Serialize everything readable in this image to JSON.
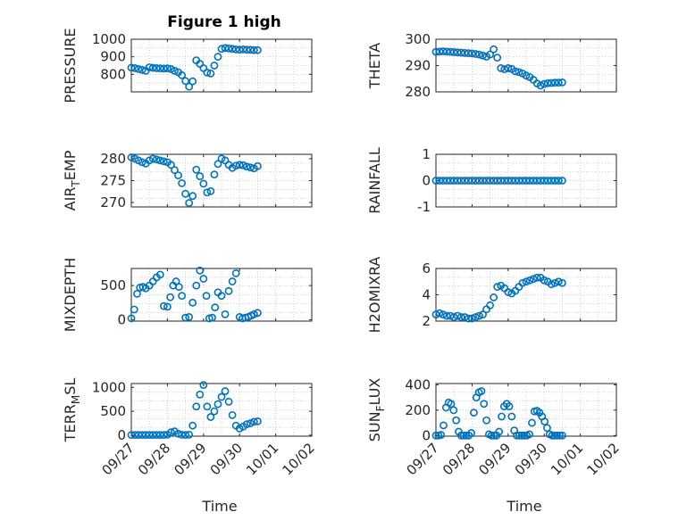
{
  "title": "Figure 1 high",
  "colors": {
    "marker": "#0072bd",
    "axis": "#262626",
    "grid": "#c8c8c8"
  },
  "chart_data": [
    {
      "id": "pressure",
      "type": "scatter",
      "ylabel_main": "PRESSURE",
      "ylabel_sub": "",
      "ylim": [
        700,
        1000
      ],
      "yticks": [
        800,
        900,
        1000
      ],
      "ytick_labels": [
        "800",
        "900",
        "1000"
      ],
      "xlabel": "",
      "x": [
        0,
        0.1,
        0.2,
        0.3,
        0.4,
        0.5,
        0.6,
        0.7,
        0.8,
        0.9,
        1.0,
        1.1,
        1.2,
        1.3,
        1.4,
        1.5,
        1.6,
        1.7,
        1.8,
        1.9,
        2.0,
        2.1,
        2.2,
        2.3,
        2.4,
        2.5,
        2.6,
        2.7,
        2.8,
        2.9,
        3.0,
        3.1,
        3.2,
        3.3,
        3.4,
        3.5
      ],
      "values": [
        838,
        835,
        830,
        825,
        820,
        840,
        837,
        835,
        834,
        833,
        834,
        830,
        820,
        812,
        795,
        762,
        730,
        760,
        880,
        860,
        835,
        810,
        805,
        850,
        900,
        945,
        950,
        948,
        945,
        942,
        940,
        942,
        940,
        940,
        938,
        938
      ]
    },
    {
      "id": "theta",
      "type": "scatter",
      "ylabel_main": "THETA",
      "ylabel_sub": "",
      "ylim": [
        280,
        300
      ],
      "yticks": [
        280,
        290,
        300
      ],
      "ytick_labels": [
        "280",
        "290",
        "300"
      ],
      "xlabel": "",
      "x": [
        0,
        0.1,
        0.2,
        0.3,
        0.4,
        0.5,
        0.6,
        0.7,
        0.8,
        0.9,
        1.0,
        1.1,
        1.2,
        1.3,
        1.4,
        1.5,
        1.6,
        1.7,
        1.8,
        1.9,
        2.0,
        2.1,
        2.2,
        2.3,
        2.4,
        2.5,
        2.6,
        2.7,
        2.8,
        2.9,
        3.0,
        3.1,
        3.2,
        3.3,
        3.4,
        3.5
      ],
      "values": [
        295.2,
        295.3,
        295.4,
        295.3,
        295.2,
        295.1,
        295.0,
        294.9,
        294.8,
        294.7,
        294.6,
        294.4,
        294.2,
        293.8,
        293.4,
        294.2,
        296.2,
        293.0,
        289.0,
        288.6,
        289.0,
        288.7,
        287.8,
        287.5,
        287.0,
        286.2,
        285.6,
        284.6,
        283.2,
        282.4,
        283.0,
        283.3,
        283.4,
        283.5,
        283.5,
        283.6
      ]
    },
    {
      "id": "air_temp",
      "type": "scatter",
      "ylabel_main": "AIR",
      "ylabel_sub": "T",
      "ylabel_rest": "EMP",
      "ylim": [
        269,
        281
      ],
      "yticks": [
        270,
        275,
        280
      ],
      "ytick_labels": [
        "270",
        "275",
        "280"
      ],
      "xlabel": "",
      "x": [
        0,
        0.1,
        0.2,
        0.3,
        0.4,
        0.5,
        0.6,
        0.7,
        0.8,
        0.9,
        1.0,
        1.1,
        1.2,
        1.3,
        1.4,
        1.5,
        1.6,
        1.7,
        1.8,
        1.9,
        2.0,
        2.1,
        2.2,
        2.3,
        2.4,
        2.5,
        2.6,
        2.7,
        2.8,
        2.9,
        3.0,
        3.1,
        3.2,
        3.3,
        3.4,
        3.5
      ],
      "values": [
        280.3,
        280.0,
        279.6,
        279.2,
        278.9,
        279.6,
        280.0,
        279.8,
        279.6,
        279.4,
        279.2,
        278.6,
        277.4,
        276.2,
        274.4,
        272.0,
        269.9,
        271.5,
        277.5,
        276.0,
        274.3,
        272.3,
        272.6,
        276.4,
        278.8,
        280.0,
        279.6,
        278.6,
        277.9,
        278.4,
        278.6,
        278.5,
        278.2,
        278.0,
        277.8,
        278.3
      ]
    },
    {
      "id": "rainfall",
      "type": "scatter",
      "ylabel_main": "RAINFALL",
      "ylabel_sub": "",
      "ylim": [
        -1,
        1
      ],
      "yticks": [
        -1,
        0,
        1
      ],
      "ytick_labels": [
        "-1",
        "0",
        "1"
      ],
      "xlabel": "",
      "x": [
        0,
        0.1,
        0.2,
        0.3,
        0.4,
        0.5,
        0.6,
        0.7,
        0.8,
        0.9,
        1.0,
        1.1,
        1.2,
        1.3,
        1.4,
        1.5,
        1.6,
        1.7,
        1.8,
        1.9,
        2.0,
        2.1,
        2.2,
        2.3,
        2.4,
        2.5,
        2.6,
        2.7,
        2.8,
        2.9,
        3.0,
        3.1,
        3.2,
        3.3,
        3.4,
        3.5
      ],
      "values": [
        0,
        0,
        0,
        0,
        0,
        0,
        0,
        0,
        0,
        0,
        0,
        0,
        0,
        0,
        0,
        0,
        0,
        0,
        0,
        0,
        0,
        0,
        0,
        0,
        0,
        0,
        0,
        0,
        0,
        0,
        0,
        0,
        0,
        0,
        0,
        0
      ]
    },
    {
      "id": "mixdepth",
      "type": "scatter",
      "ylabel_main": "MIXDEPTH",
      "ylabel_sub": "",
      "ylim": [
        -20,
        750
      ],
      "yticks": [
        0,
        500
      ],
      "ytick_labels": [
        "0",
        "500"
      ],
      "xlabel": "",
      "x": [
        0,
        0.08,
        0.16,
        0.24,
        0.32,
        0.4,
        0.5,
        0.6,
        0.7,
        0.8,
        0.9,
        1.0,
        1.08,
        1.16,
        1.24,
        1.32,
        1.4,
        1.5,
        1.6,
        1.7,
        1.8,
        1.9,
        2.0,
        2.08,
        2.16,
        2.24,
        2.32,
        2.4,
        2.5,
        2.6,
        2.7,
        2.8,
        2.9,
        3.0,
        3.08,
        3.16,
        3.24,
        3.32,
        3.4,
        3.5
      ],
      "values": [
        20,
        150,
        380,
        470,
        480,
        460,
        500,
        560,
        620,
        660,
        200,
        190,
        330,
        500,
        560,
        480,
        350,
        30,
        40,
        250,
        500,
        720,
        600,
        350,
        20,
        30,
        180,
        400,
        350,
        80,
        420,
        560,
        680,
        40,
        20,
        30,
        40,
        60,
        80,
        100
      ]
    },
    {
      "id": "h2omixra",
      "type": "scatter",
      "ylabel_main": "H2OMIXRA",
      "ylabel_sub": "",
      "ylim": [
        2,
        6
      ],
      "yticks": [
        2,
        4,
        6
      ],
      "ytick_labels": [
        "2",
        "4",
        "6"
      ],
      "xlabel": "",
      "x": [
        0,
        0.1,
        0.2,
        0.3,
        0.4,
        0.5,
        0.6,
        0.7,
        0.8,
        0.9,
        1.0,
        1.1,
        1.2,
        1.3,
        1.4,
        1.5,
        1.6,
        1.7,
        1.8,
        1.9,
        2.0,
        2.1,
        2.2,
        2.3,
        2.4,
        2.5,
        2.6,
        2.7,
        2.8,
        2.9,
        3.0,
        3.1,
        3.2,
        3.3,
        3.4,
        3.5
      ],
      "values": [
        2.5,
        2.6,
        2.5,
        2.4,
        2.4,
        2.3,
        2.4,
        2.3,
        2.3,
        2.2,
        2.2,
        2.3,
        2.4,
        2.5,
        2.9,
        3.2,
        3.8,
        4.6,
        4.7,
        4.5,
        4.2,
        4.1,
        4.3,
        4.6,
        4.9,
        5.0,
        5.1,
        5.2,
        5.3,
        5.3,
        5.1,
        5.0,
        4.8,
        4.9,
        5.0,
        4.9
      ]
    },
    {
      "id": "terr_msl",
      "type": "scatter",
      "ylabel_main": "TERR",
      "ylabel_sub": "M",
      "ylabel_rest": "SL",
      "ylim": [
        -20,
        1080
      ],
      "yticks": [
        0,
        500,
        1000
      ],
      "ytick_labels": [
        "0",
        "500",
        "1000"
      ],
      "xlabel": "Time",
      "x": [
        0,
        0.1,
        0.2,
        0.3,
        0.4,
        0.5,
        0.6,
        0.7,
        0.8,
        0.9,
        1.0,
        1.1,
        1.2,
        1.3,
        1.4,
        1.5,
        1.6,
        1.7,
        1.8,
        1.9,
        2.0,
        2.1,
        2.2,
        2.3,
        2.4,
        2.5,
        2.6,
        2.7,
        2.8,
        2.9,
        3.0,
        3.1,
        3.2,
        3.3,
        3.4,
        3.5
      ],
      "values": [
        5,
        5,
        5,
        5,
        5,
        5,
        5,
        5,
        5,
        5,
        10,
        60,
        80,
        30,
        10,
        5,
        10,
        200,
        600,
        850,
        1050,
        600,
        380,
        500,
        650,
        800,
        920,
        700,
        420,
        200,
        140,
        180,
        230,
        250,
        280,
        290
      ]
    },
    {
      "id": "sun_flux",
      "type": "scatter",
      "ylabel_main": "SUN",
      "ylabel_sub": "F",
      "ylabel_rest": "LUX",
      "ylim": [
        -5,
        410
      ],
      "yticks": [
        0,
        200,
        400
      ],
      "ytick_labels": [
        "0",
        "200",
        "400"
      ],
      "xlabel": "Time",
      "x": [
        0,
        0.07,
        0.14,
        0.21,
        0.28,
        0.35,
        0.42,
        0.49,
        0.56,
        0.63,
        0.7,
        0.77,
        0.84,
        0.91,
        0.98,
        1.05,
        1.12,
        1.19,
        1.26,
        1.33,
        1.4,
        1.47,
        1.54,
        1.61,
        1.68,
        1.75,
        1.82,
        1.89,
        1.96,
        2.03,
        2.1,
        2.17,
        2.24,
        2.31,
        2.38,
        2.45,
        2.52,
        2.59,
        2.66,
        2.73,
        2.8,
        2.87,
        2.94,
        3.01,
        3.08,
        3.15,
        3.22,
        3.29,
        3.36,
        3.43,
        3.5
      ],
      "values": [
        0,
        0,
        5,
        80,
        220,
        260,
        250,
        200,
        120,
        30,
        0,
        0,
        0,
        0,
        20,
        180,
        300,
        340,
        350,
        250,
        120,
        10,
        0,
        0,
        0,
        30,
        150,
        230,
        250,
        230,
        150,
        40,
        0,
        0,
        0,
        0,
        0,
        10,
        100,
        190,
        195,
        180,
        150,
        110,
        60,
        10,
        0,
        0,
        0,
        0,
        0
      ]
    }
  ],
  "xaxis": {
    "range": [
      0,
      5
    ],
    "ticks": [
      0,
      1,
      2,
      3,
      4,
      5
    ],
    "tick_labels": [
      "09/27",
      "09/28",
      "09/29",
      "09/30",
      "10/01",
      "10/02"
    ]
  }
}
